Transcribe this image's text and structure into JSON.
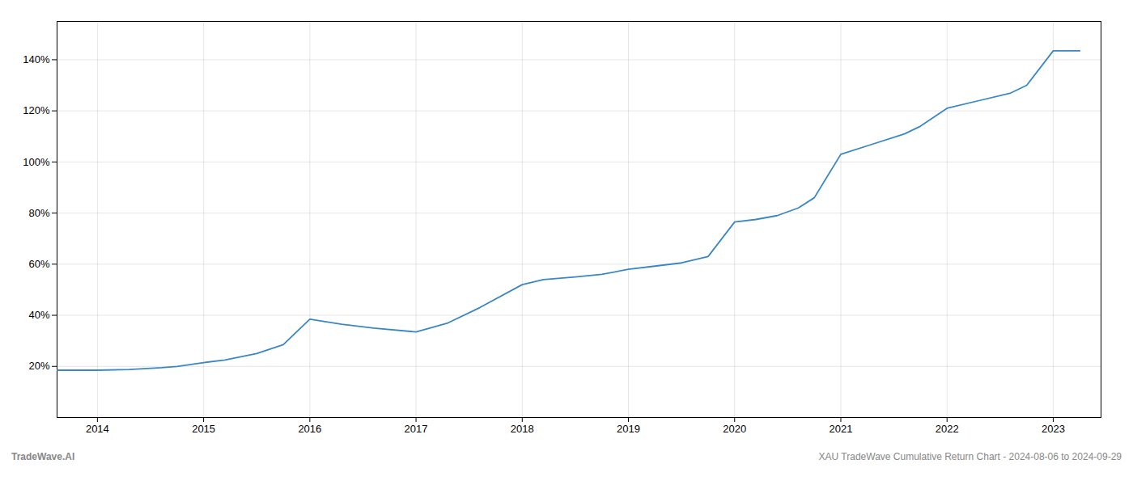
{
  "chart_data": {
    "type": "line",
    "x": [
      2013.62,
      2014.0,
      2014.3,
      2014.6,
      2014.75,
      2015.0,
      2015.2,
      2015.5,
      2015.75,
      2016.0,
      2016.3,
      2016.6,
      2017.0,
      2017.3,
      2017.6,
      2018.0,
      2018.2,
      2018.5,
      2018.75,
      2019.0,
      2019.2,
      2019.5,
      2019.75,
      2020.0,
      2020.2,
      2020.4,
      2020.6,
      2020.75,
      2021.0,
      2021.3,
      2021.6,
      2021.75,
      2022.0,
      2022.3,
      2022.6,
      2022.75,
      2023.0,
      2023.25
    ],
    "values": [
      18.5,
      18.5,
      18.8,
      19.5,
      20.0,
      21.5,
      22.5,
      25.0,
      28.5,
      38.5,
      36.5,
      35.0,
      33.5,
      37.0,
      43.0,
      52.0,
      54.0,
      55.0,
      56.0,
      58.0,
      59.0,
      60.5,
      63.0,
      76.5,
      77.5,
      79.0,
      82.0,
      86.0,
      103.0,
      107.0,
      111.0,
      114.0,
      121.0,
      124.0,
      127.0,
      130.0,
      143.5,
      143.5
    ],
    "color": "#3a87c8",
    "xlim": [
      2013.62,
      2023.45
    ],
    "xticks": [
      2014,
      2015,
      2016,
      2017,
      2018,
      2019,
      2020,
      2021,
      2022,
      2023
    ],
    "ylim": [
      0,
      155
    ],
    "yticks": [
      {
        "value": 20,
        "label": "20%"
      },
      {
        "value": 40,
        "label": "40%"
      },
      {
        "value": 60,
        "label": "60%"
      },
      {
        "value": 80,
        "label": "80%"
      },
      {
        "value": 100,
        "label": "100%"
      },
      {
        "value": 120,
        "label": "120%"
      },
      {
        "value": 140,
        "label": "140%"
      }
    ],
    "grid": true,
    "annotations": [
      "TradeWave.AI",
      "XAU TradeWave Cumulative Return Chart - 2024-08-06 to 2024-09-29"
    ]
  }
}
